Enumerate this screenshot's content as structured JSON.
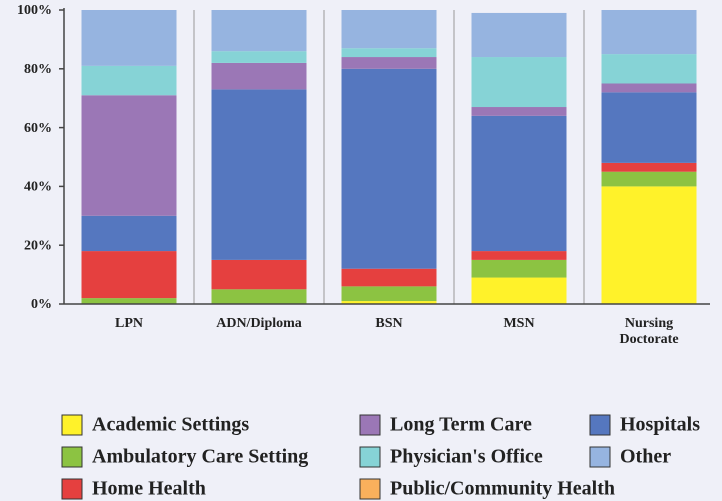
{
  "chart_data": {
    "type": "stacked_bar",
    "categories": [
      "LPN",
      "ADN/Diploma",
      "BSN",
      "MSN",
      "Nursing Doctorate"
    ],
    "series": [
      {
        "name": "Academic Settings",
        "color": "#fff22a",
        "values": [
          0,
          0,
          1,
          9,
          40
        ]
      },
      {
        "name": "Ambulatory Care Setting",
        "color": "#8cc342",
        "values": [
          2,
          5,
          5,
          6,
          5
        ]
      },
      {
        "name": "Home Health",
        "color": "#e5403f",
        "values": [
          16,
          10,
          6,
          3,
          3
        ]
      },
      {
        "name": "Public/Community Health",
        "color": "#f9b05c",
        "values": [
          0,
          0,
          0,
          0,
          0
        ]
      },
      {
        "name": "Hospitals",
        "color": "#5577bf",
        "values": [
          12,
          58,
          68,
          46,
          24
        ]
      },
      {
        "name": "Long Term Care",
        "color": "#9b77b6",
        "values": [
          41,
          9,
          4,
          3,
          3
        ]
      },
      {
        "name": "Physician's Office",
        "color": "#86d3d6",
        "values": [
          10,
          4,
          3,
          17,
          10
        ]
      },
      {
        "name": "Other",
        "color": "#96b4e0",
        "values": [
          19,
          14,
          13,
          15,
          15
        ]
      }
    ],
    "ylim": [
      0,
      100
    ],
    "yticks": [
      {
        "value": 0,
        "label": "0%"
      },
      {
        "value": 20,
        "label": "20%"
      },
      {
        "value": 40,
        "label": "40%"
      },
      {
        "value": 60,
        "label": "60%"
      },
      {
        "value": 80,
        "label": "80%"
      },
      {
        "value": 100,
        "label": "100%"
      }
    ]
  }
}
